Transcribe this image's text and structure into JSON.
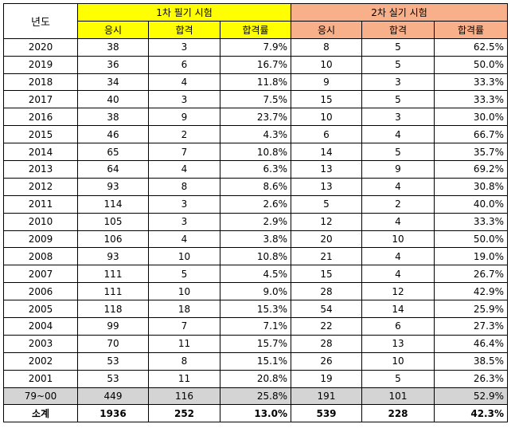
{
  "headers": {
    "year": "년도",
    "exam1": "1차 필기 시험",
    "exam2": "2차 실기 시험",
    "sub1": [
      "응시",
      "합격",
      "합격률"
    ],
    "sub2": [
      "응시",
      "합격",
      "합격률"
    ]
  },
  "rows": [
    {
      "year": "2020",
      "a1": "38",
      "p1": "3",
      "r1": "7.9%",
      "a2": "8",
      "p2": "5",
      "r2": "62.5%"
    },
    {
      "year": "2019",
      "a1": "36",
      "p1": "6",
      "r1": "16.7%",
      "a2": "10",
      "p2": "5",
      "r2": "50.0%"
    },
    {
      "year": "2018",
      "a1": "34",
      "p1": "4",
      "r1": "11.8%",
      "a2": "9",
      "p2": "3",
      "r2": "33.3%"
    },
    {
      "year": "2017",
      "a1": "40",
      "p1": "3",
      "r1": "7.5%",
      "a2": "15",
      "p2": "5",
      "r2": "33.3%"
    },
    {
      "year": "2016",
      "a1": "38",
      "p1": "9",
      "r1": "23.7%",
      "a2": "10",
      "p2": "3",
      "r2": "30.0%"
    },
    {
      "year": "2015",
      "a1": "46",
      "p1": "2",
      "r1": "4.3%",
      "a2": "6",
      "p2": "4",
      "r2": "66.7%"
    },
    {
      "year": "2014",
      "a1": "65",
      "p1": "7",
      "r1": "10.8%",
      "a2": "14",
      "p2": "5",
      "r2": "35.7%"
    },
    {
      "year": "2013",
      "a1": "64",
      "p1": "4",
      "r1": "6.3%",
      "a2": "13",
      "p2": "9",
      "r2": "69.2%"
    },
    {
      "year": "2012",
      "a1": "93",
      "p1": "8",
      "r1": "8.6%",
      "a2": "13",
      "p2": "4",
      "r2": "30.8%"
    },
    {
      "year": "2011",
      "a1": "114",
      "p1": "3",
      "r1": "2.6%",
      "a2": "5",
      "p2": "2",
      "r2": "40.0%"
    },
    {
      "year": "2010",
      "a1": "105",
      "p1": "3",
      "r1": "2.9%",
      "a2": "12",
      "p2": "4",
      "r2": "33.3%"
    },
    {
      "year": "2009",
      "a1": "106",
      "p1": "4",
      "r1": "3.8%",
      "a2": "20",
      "p2": "10",
      "r2": "50.0%"
    },
    {
      "year": "2008",
      "a1": "93",
      "p1": "10",
      "r1": "10.8%",
      "a2": "21",
      "p2": "4",
      "r2": "19.0%"
    },
    {
      "year": "2007",
      "a1": "111",
      "p1": "5",
      "r1": "4.5%",
      "a2": "15",
      "p2": "4",
      "r2": "26.7%"
    },
    {
      "year": "2006",
      "a1": "111",
      "p1": "10",
      "r1": "9.0%",
      "a2": "28",
      "p2": "12",
      "r2": "42.9%"
    },
    {
      "year": "2005",
      "a1": "118",
      "p1": "18",
      "r1": "15.3%",
      "a2": "54",
      "p2": "14",
      "r2": "25.9%"
    },
    {
      "year": "2004",
      "a1": "99",
      "p1": "7",
      "r1": "7.1%",
      "a2": "22",
      "p2": "6",
      "r2": "27.3%"
    },
    {
      "year": "2003",
      "a1": "70",
      "p1": "11",
      "r1": "15.7%",
      "a2": "28",
      "p2": "13",
      "r2": "46.4%"
    },
    {
      "year": "2002",
      "a1": "53",
      "p1": "8",
      "r1": "15.1%",
      "a2": "26",
      "p2": "10",
      "r2": "38.5%"
    },
    {
      "year": "2001",
      "a1": "53",
      "p1": "11",
      "r1": "20.8%",
      "a2": "19",
      "p2": "5",
      "r2": "26.3%"
    }
  ],
  "gray_row": {
    "year": "79~00",
    "a1": "449",
    "p1": "116",
    "r1": "25.8%",
    "a2": "191",
    "p2": "101",
    "r2": "52.9%"
  },
  "total_row": {
    "year": "소계",
    "a1": "1936",
    "p1": "252",
    "r1": "13.0%",
    "a2": "539",
    "p2": "228",
    "r2": "42.3%"
  },
  "colors": {
    "exam1_header": "#ffff00",
    "exam2_header": "#f7b08a",
    "gray_row": "#d4d4d4"
  }
}
